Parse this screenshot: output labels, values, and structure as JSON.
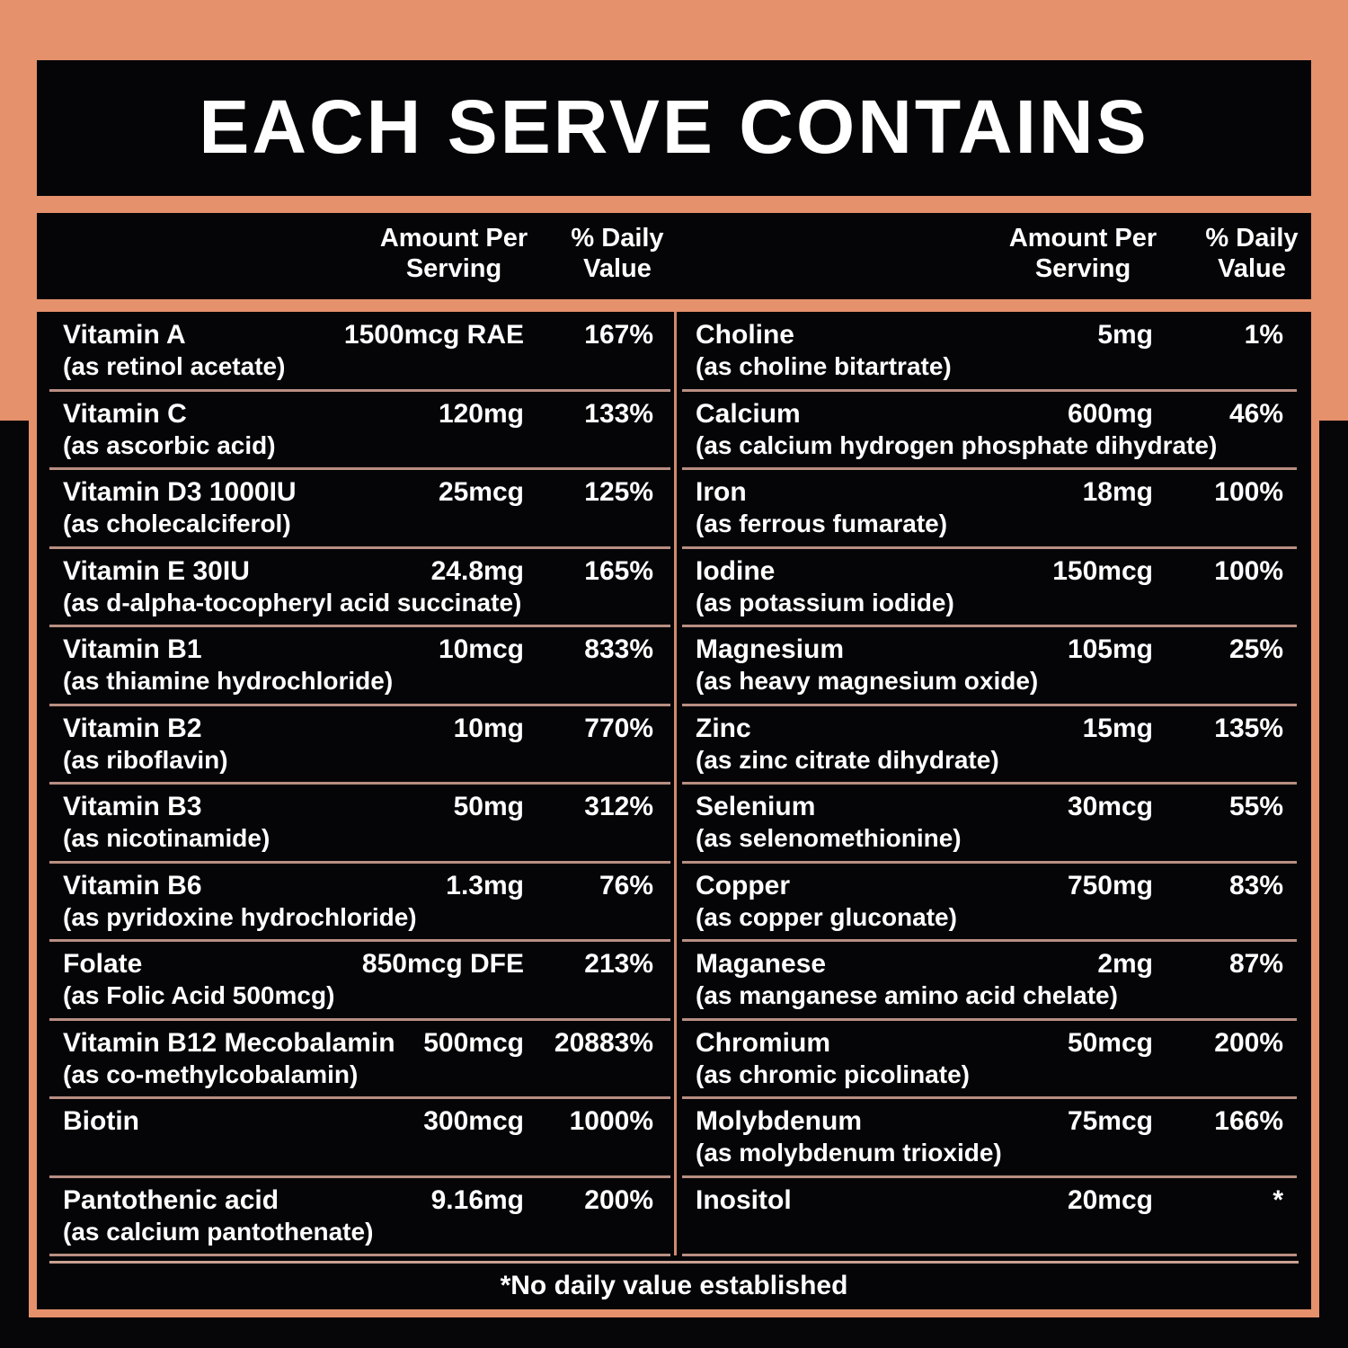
{
  "title": "EACH SERVE CONTAINS",
  "headers": {
    "amount": "Amount Per Serving",
    "daily_value": "% Daily Value"
  },
  "left_rows": [
    {
      "name": "Vitamin A",
      "sub": "(as retinol acetate)",
      "amount": "1500mcg RAE",
      "dv": "167%"
    },
    {
      "name": "Vitamin C",
      "sub": "(as ascorbic acid)",
      "amount": "120mg",
      "dv": "133%"
    },
    {
      "name": "Vitamin D3 1000IU",
      "sub": "(as cholecalciferol)",
      "amount": "25mcg",
      "dv": "125%"
    },
    {
      "name": "Vitamin E 30IU",
      "sub": "(as d-alpha-tocopheryl acid succinate)",
      "amount": "24.8mg",
      "dv": "165%"
    },
    {
      "name": "Vitamin B1",
      "sub": "(as thiamine hydrochloride)",
      "amount": "10mcg",
      "dv": "833%"
    },
    {
      "name": "Vitamin B2",
      "sub": "(as riboflavin)",
      "amount": "10mg",
      "dv": "770%"
    },
    {
      "name": "Vitamin B3",
      "sub": "(as nicotinamide)",
      "amount": "50mg",
      "dv": "312%"
    },
    {
      "name": "Vitamin B6",
      "sub": "(as pyridoxine hydrochloride)",
      "amount": "1.3mg",
      "dv": "76%"
    },
    {
      "name": "Folate",
      "sub": "(as Folic Acid 500mcg)",
      "amount": "850mcg DFE",
      "dv": "213%"
    },
    {
      "name": "Vitamin B12 Mecobalamin",
      "sub": "(as co-methylcobalamin)",
      "amount": "500mcg",
      "dv": "20883%"
    },
    {
      "name": "Biotin",
      "sub": "",
      "amount": "300mcg",
      "dv": "1000%"
    },
    {
      "name": "Pantothenic acid",
      "sub": "(as calcium pantothenate)",
      "amount": "9.16mg",
      "dv": "200%"
    }
  ],
  "right_rows": [
    {
      "name": "Choline",
      "sub": "(as choline bitartrate)",
      "amount": "5mg",
      "dv": "1%"
    },
    {
      "name": "Calcium",
      "sub": "(as calcium hydrogen phosphate dihydrate)",
      "amount": "600mg",
      "dv": "46%"
    },
    {
      "name": "Iron",
      "sub": "(as ferrous fumarate)",
      "amount": "18mg",
      "dv": "100%"
    },
    {
      "name": "Iodine",
      "sub": "(as potassium iodide)",
      "amount": "150mcg",
      "dv": "100%"
    },
    {
      "name": "Magnesium",
      "sub": "(as heavy magnesium oxide)",
      "amount": "105mg",
      "dv": "25%"
    },
    {
      "name": "Zinc",
      "sub": "(as zinc citrate dihydrate)",
      "amount": "15mg",
      "dv": "135%"
    },
    {
      "name": "Selenium",
      "sub": "(as selenomethionine)",
      "amount": "30mcg",
      "dv": "55%"
    },
    {
      "name": "Copper",
      "sub": "(as copper gluconate)",
      "amount": "750mg",
      "dv": "83%"
    },
    {
      "name": "Maganese",
      "sub": "(as manganese amino acid chelate)",
      "amount": "2mg",
      "dv": "87%"
    },
    {
      "name": "Chromium",
      "sub": "(as chromic picolinate)",
      "amount": "50mcg",
      "dv": "200%"
    },
    {
      "name": "Molybdenum",
      "sub": "(as molybdenum trioxide)",
      "amount": "75mcg",
      "dv": "166%"
    },
    {
      "name": "Inositol",
      "sub": "",
      "amount": "20mcg",
      "dv": "*"
    }
  ],
  "footnote": "*No daily value established",
  "colors": {
    "coral": "#e5916c",
    "panel_bg": "#050507",
    "row_divider": "#b98e83",
    "center_divider": "#cf8a6d",
    "footer_rule": "#c9a193",
    "text": "#ffffff"
  }
}
